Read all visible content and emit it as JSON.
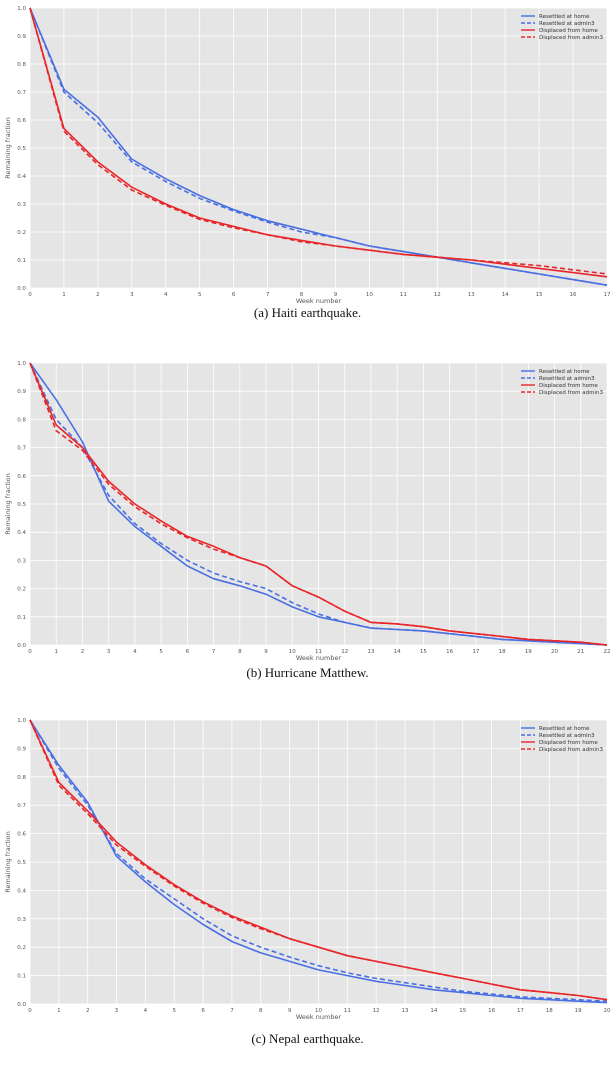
{
  "panels": [
    {
      "caption": "(a) Haiti earthquake."
    },
    {
      "caption": "(b) Hurricane Matthew."
    },
    {
      "caption": "(c) Nepal earthquake."
    }
  ],
  "colors": {
    "blue": "#4a6fe3",
    "red": "#e8262a",
    "plot_bg": "#e5e5e5",
    "grid": "#ffffff"
  },
  "chart_data": [
    {
      "type": "line",
      "xlabel": "Week number",
      "ylabel": "Remaining fraction",
      "xlim": [
        0,
        17
      ],
      "ylim": [
        0,
        1.0
      ],
      "x_ticks": [
        0,
        1,
        2,
        3,
        4,
        5,
        6,
        7,
        8,
        9,
        10,
        11,
        12,
        13,
        14,
        15,
        16,
        17
      ],
      "y_ticks": [
        "0.0",
        "0.1",
        "0.2",
        "0.3",
        "0.4",
        "0.5",
        "0.6",
        "0.7",
        "0.8",
        "0.9",
        "1.0"
      ],
      "grid": true,
      "legend_position": "top-right",
      "series": [
        {
          "name": "Resettled at home",
          "color": "#4a6fe3",
          "dash": false,
          "x": [
            0,
            1,
            2,
            3,
            4,
            5,
            6,
            7,
            8,
            9,
            10,
            11,
            12,
            13,
            14,
            15,
            16,
            17
          ],
          "y": [
            1.0,
            0.71,
            0.61,
            0.46,
            0.39,
            0.33,
            0.28,
            0.24,
            0.21,
            0.18,
            0.15,
            0.13,
            0.11,
            0.09,
            0.07,
            0.05,
            0.03,
            0.01
          ]
        },
        {
          "name": "Resettled at admin3",
          "color": "#4a6fe3",
          "dash": true,
          "x": [
            0,
            1,
            2,
            3,
            4,
            5,
            6,
            7,
            8,
            9,
            10,
            11,
            12,
            13,
            14,
            15,
            16,
            17
          ],
          "y": [
            1.0,
            0.7,
            0.59,
            0.45,
            0.38,
            0.32,
            0.275,
            0.235,
            0.2,
            0.18,
            0.15,
            0.13,
            0.11,
            0.09,
            0.07,
            0.05,
            0.03,
            0.01
          ]
        },
        {
          "name": "Displaced from home",
          "color": "#e8262a",
          "dash": false,
          "x": [
            0,
            1,
            2,
            3,
            4,
            5,
            6,
            7,
            8,
            9,
            10,
            11,
            12,
            13,
            14,
            15,
            16,
            17
          ],
          "y": [
            1.0,
            0.57,
            0.45,
            0.36,
            0.3,
            0.25,
            0.22,
            0.19,
            0.17,
            0.15,
            0.135,
            0.12,
            0.11,
            0.1,
            0.085,
            0.07,
            0.055,
            0.04
          ]
        },
        {
          "name": "Displaced from admin3",
          "color": "#e8262a",
          "dash": true,
          "x": [
            0,
            1,
            2,
            3,
            4,
            5,
            6,
            7,
            8,
            9,
            10,
            11,
            12,
            13,
            14,
            15,
            16,
            17
          ],
          "y": [
            1.0,
            0.56,
            0.44,
            0.35,
            0.295,
            0.245,
            0.215,
            0.19,
            0.165,
            0.15,
            0.135,
            0.12,
            0.11,
            0.1,
            0.09,
            0.08,
            0.065,
            0.05
          ]
        }
      ]
    },
    {
      "type": "line",
      "xlabel": "Week number",
      "ylabel": "Remaining fraction",
      "xlim": [
        0,
        22
      ],
      "ylim": [
        0,
        1.0
      ],
      "x_ticks": [
        0,
        1,
        2,
        3,
        4,
        5,
        6,
        7,
        8,
        9,
        10,
        11,
        12,
        13,
        14,
        15,
        16,
        17,
        18,
        19,
        20,
        21,
        22
      ],
      "y_ticks": [
        "0.0",
        "0.1",
        "0.2",
        "0.3",
        "0.4",
        "0.5",
        "0.6",
        "0.7",
        "0.8",
        "0.9",
        "1.0"
      ],
      "grid": true,
      "legend_position": "top-right",
      "series": [
        {
          "name": "Resettled at home",
          "color": "#4a6fe3",
          "dash": false,
          "x": [
            0,
            1,
            2,
            3,
            4,
            5,
            6,
            7,
            8,
            9,
            10,
            11,
            12,
            13,
            14,
            15,
            16,
            17,
            18,
            19,
            20,
            21,
            22
          ],
          "y": [
            1.0,
            0.87,
            0.72,
            0.51,
            0.42,
            0.35,
            0.28,
            0.235,
            0.21,
            0.18,
            0.135,
            0.1,
            0.08,
            0.06,
            0.055,
            0.05,
            0.04,
            0.03,
            0.02,
            0.015,
            0.01,
            0.005,
            0.0
          ]
        },
        {
          "name": "Resettled at admin3",
          "color": "#4a6fe3",
          "dash": true,
          "x": [
            0,
            1,
            2,
            3,
            4,
            5,
            6,
            7,
            8,
            9,
            10,
            11,
            12,
            13,
            14,
            15,
            16,
            17,
            18,
            19,
            20,
            21,
            22
          ],
          "y": [
            1.0,
            0.8,
            0.7,
            0.53,
            0.43,
            0.36,
            0.3,
            0.255,
            0.225,
            0.2,
            0.15,
            0.11,
            0.08,
            0.06,
            0.055,
            0.05,
            0.04,
            0.03,
            0.02,
            0.015,
            0.01,
            0.005,
            0.0
          ]
        },
        {
          "name": "Displaced from home",
          "color": "#e8262a",
          "dash": false,
          "x": [
            0,
            1,
            2,
            3,
            4,
            5,
            6,
            7,
            8,
            9,
            10,
            11,
            12,
            13,
            14,
            15,
            16,
            17,
            18,
            19,
            20,
            21,
            22
          ],
          "y": [
            1.0,
            0.78,
            0.7,
            0.58,
            0.5,
            0.44,
            0.385,
            0.35,
            0.31,
            0.28,
            0.21,
            0.17,
            0.12,
            0.08,
            0.075,
            0.065,
            0.05,
            0.04,
            0.03,
            0.02,
            0.015,
            0.01,
            0.0
          ]
        },
        {
          "name": "Displaced from admin3",
          "color": "#e8262a",
          "dash": true,
          "x": [
            0,
            1,
            2,
            3,
            4,
            5,
            6,
            7,
            8,
            9,
            10,
            11,
            12,
            13,
            14,
            15,
            16,
            17,
            18,
            19,
            20,
            21,
            22
          ],
          "y": [
            1.0,
            0.76,
            0.69,
            0.57,
            0.49,
            0.43,
            0.38,
            0.34,
            0.31,
            0.28,
            0.21,
            0.17,
            0.12,
            0.08,
            0.075,
            0.065,
            0.05,
            0.04,
            0.03,
            0.02,
            0.015,
            0.01,
            0.0
          ]
        }
      ]
    },
    {
      "type": "line",
      "xlabel": "Week number",
      "ylabel": "Remaining fraction",
      "xlim": [
        0,
        20
      ],
      "ylim": [
        0,
        1.0
      ],
      "x_ticks": [
        0,
        1,
        2,
        3,
        4,
        5,
        6,
        7,
        8,
        9,
        10,
        11,
        12,
        13,
        14,
        15,
        16,
        17,
        18,
        19,
        20
      ],
      "y_ticks": [
        "0.0",
        "0.1",
        "0.2",
        "0.3",
        "0.4",
        "0.5",
        "0.6",
        "0.7",
        "0.8",
        "0.9",
        "1.0"
      ],
      "grid": true,
      "legend_position": "top-right",
      "series": [
        {
          "name": "Resettled at home",
          "color": "#4a6fe3",
          "dash": false,
          "x": [
            0,
            1,
            2,
            3,
            4,
            5,
            6,
            7,
            8,
            9,
            10,
            11,
            12,
            13,
            14,
            15,
            16,
            17,
            18,
            19,
            20
          ],
          "y": [
            1.0,
            0.84,
            0.71,
            0.52,
            0.43,
            0.35,
            0.28,
            0.22,
            0.18,
            0.15,
            0.12,
            0.1,
            0.08,
            0.065,
            0.05,
            0.04,
            0.03,
            0.02,
            0.015,
            0.01,
            0.005
          ]
        },
        {
          "name": "Resettled at admin3",
          "color": "#4a6fe3",
          "dash": true,
          "x": [
            0,
            1,
            2,
            3,
            4,
            5,
            6,
            7,
            8,
            9,
            10,
            11,
            12,
            13,
            14,
            15,
            16,
            17,
            18,
            19,
            20
          ],
          "y": [
            1.0,
            0.83,
            0.7,
            0.53,
            0.44,
            0.37,
            0.3,
            0.24,
            0.2,
            0.165,
            0.135,
            0.11,
            0.09,
            0.075,
            0.06,
            0.045,
            0.035,
            0.025,
            0.02,
            0.015,
            0.01
          ]
        },
        {
          "name": "Displaced from home",
          "color": "#e8262a",
          "dash": false,
          "x": [
            0,
            1,
            2,
            3,
            4,
            5,
            6,
            7,
            8,
            9,
            10,
            11,
            12,
            13,
            14,
            15,
            16,
            17,
            18,
            19,
            20
          ],
          "y": [
            1.0,
            0.78,
            0.68,
            0.57,
            0.49,
            0.42,
            0.36,
            0.31,
            0.27,
            0.23,
            0.2,
            0.17,
            0.15,
            0.13,
            0.11,
            0.09,
            0.07,
            0.05,
            0.04,
            0.03,
            0.015
          ]
        },
        {
          "name": "Displaced from admin3",
          "color": "#e8262a",
          "dash": true,
          "x": [
            0,
            1,
            2,
            3,
            4,
            5,
            6,
            7,
            8,
            9,
            10,
            11,
            12,
            13,
            14,
            15,
            16,
            17,
            18,
            19,
            20
          ],
          "y": [
            1.0,
            0.77,
            0.67,
            0.56,
            0.485,
            0.415,
            0.355,
            0.305,
            0.265,
            0.23,
            0.2,
            0.17,
            0.15,
            0.13,
            0.11,
            0.09,
            0.07,
            0.05,
            0.04,
            0.03,
            0.015
          ]
        }
      ]
    }
  ]
}
